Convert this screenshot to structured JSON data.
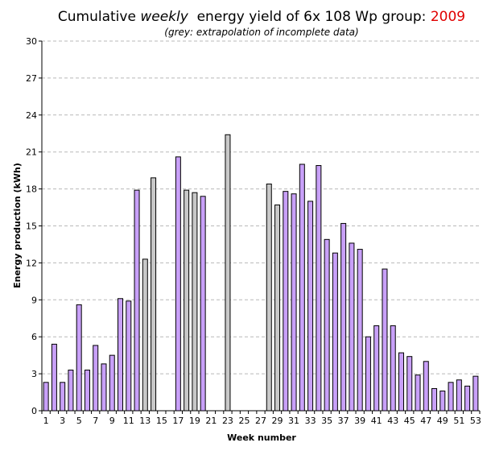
{
  "chart_data": {
    "type": "bar",
    "title_prefix": "Cumulative ",
    "title_emph": "weekly",
    "title_middle": "  energy yield of 6x 108 Wp group: ",
    "title_year": "2009",
    "subtitle": "(grey: extrapolation of incomplete data)",
    "xlabel": "Week number",
    "ylabel": "Energy production (kWh)",
    "ylim": [
      0,
      30
    ],
    "yticks": [
      0,
      3,
      6,
      9,
      12,
      15,
      18,
      21,
      24,
      27,
      30
    ],
    "xtick_labels": [
      "1",
      "3",
      "5",
      "7",
      "9",
      "11",
      "13",
      "15",
      "17",
      "19",
      "21",
      "23",
      "25",
      "27",
      "29",
      "31",
      "33",
      "35",
      "37",
      "39",
      "41",
      "43",
      "45",
      "47",
      "49",
      "51",
      "53"
    ],
    "grid": true,
    "weeks": [
      1,
      2,
      3,
      4,
      5,
      6,
      7,
      8,
      9,
      10,
      11,
      12,
      13,
      14,
      15,
      16,
      17,
      18,
      19,
      20,
      21,
      22,
      23,
      24,
      25,
      26,
      27,
      28,
      29,
      30,
      31,
      32,
      33,
      34,
      35,
      36,
      37,
      38,
      39,
      40,
      41,
      42,
      43,
      44,
      45,
      46,
      47,
      48,
      49,
      50,
      51,
      52,
      53
    ],
    "values": [
      2.3,
      5.4,
      2.3,
      3.3,
      8.6,
      3.3,
      5.3,
      3.8,
      4.5,
      9.1,
      8.9,
      17.9,
      12.3,
      18.9,
      null,
      null,
      20.6,
      17.9,
      17.7,
      17.4,
      null,
      null,
      22.4,
      null,
      null,
      null,
      null,
      18.4,
      16.7,
      17.8,
      17.6,
      20.0,
      17.0,
      19.9,
      13.9,
      12.8,
      15.2,
      13.6,
      13.1,
      6.0,
      6.9,
      11.5,
      6.9,
      4.7,
      4.4,
      2.9,
      4.0,
      1.8,
      1.6,
      2.3,
      2.5,
      2.0,
      2.8
    ],
    "extrapolated": [
      false,
      false,
      false,
      false,
      false,
      false,
      false,
      false,
      false,
      false,
      false,
      false,
      true,
      true,
      false,
      false,
      false,
      true,
      true,
      false,
      false,
      false,
      true,
      false,
      false,
      false,
      false,
      true,
      true,
      false,
      false,
      false,
      false,
      false,
      false,
      false,
      false,
      false,
      false,
      false,
      false,
      false,
      false,
      false,
      false,
      false,
      false,
      false,
      false,
      false,
      false,
      false,
      false
    ],
    "colors": {
      "measured": "#c8a0f8",
      "extrapolated": "#c8c8c8",
      "year": "#e00000",
      "grid": "#b8b8b8"
    }
  }
}
